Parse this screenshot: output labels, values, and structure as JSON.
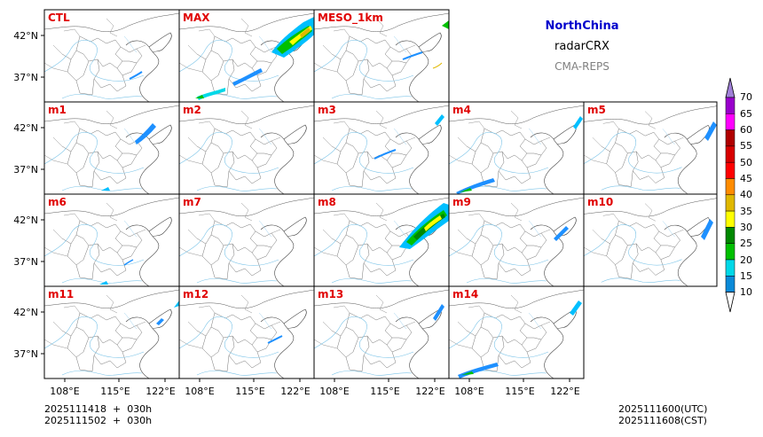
{
  "header": {
    "region": "NorthChina",
    "variable": "radarCRX",
    "system": "CMA-REPS",
    "region_color": "#0000cc",
    "system_color": "#808080"
  },
  "panels": [
    {
      "label": "CTL",
      "echo": "sparse"
    },
    {
      "label": "MAX",
      "echo": "strong"
    },
    {
      "label": "MESO_1km",
      "echo": "edge"
    },
    {
      "label": "m1",
      "echo": "light"
    },
    {
      "label": "m2",
      "echo": "none"
    },
    {
      "label": "m3",
      "echo": "light"
    },
    {
      "label": "m4",
      "echo": "band"
    },
    {
      "label": "m5",
      "echo": "edge"
    },
    {
      "label": "m6",
      "echo": "light"
    },
    {
      "label": "m7",
      "echo": "none"
    },
    {
      "label": "m8",
      "echo": "strong"
    },
    {
      "label": "m9",
      "echo": "light"
    },
    {
      "label": "m10",
      "echo": "edge"
    },
    {
      "label": "m11",
      "echo": "light"
    },
    {
      "label": "m12",
      "echo": "light"
    },
    {
      "label": "m13",
      "echo": "light"
    },
    {
      "label": "m14",
      "echo": "band"
    }
  ],
  "axes": {
    "lat_ticks": [
      "42°N",
      "37°N"
    ],
    "lon_ticks": [
      "108°E",
      "115°E",
      "122°E"
    ]
  },
  "colorbar": {
    "levels": [
      "10",
      "15",
      "20",
      "25",
      "30",
      "35",
      "40",
      "45",
      "50",
      "55",
      "60",
      "65",
      "70"
    ],
    "colors": [
      "#0a8ad8",
      "#00d8e8",
      "#00c000",
      "#008800",
      "#ffff00",
      "#e0b800",
      "#ff8c00",
      "#ff0000",
      "#d80000",
      "#b00000",
      "#ff00ff",
      "#9900cc",
      "#a080d8"
    ]
  },
  "footer": {
    "init_line1": "2025111418  +  030h",
    "init_line2": "2025111502  +  030h",
    "valid_utc": "2025111600(UTC)",
    "valid_cst": "2025111608(CST)"
  }
}
